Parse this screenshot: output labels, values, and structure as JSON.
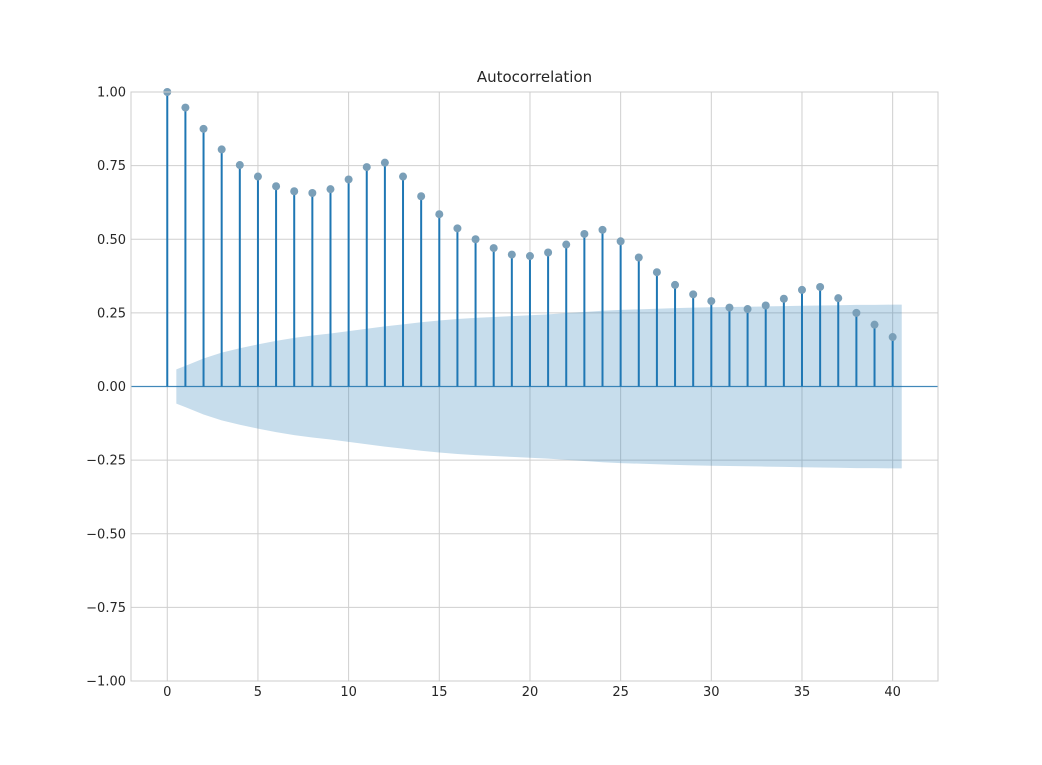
{
  "chart_data": {
    "type": "stem",
    "title": "Autocorrelation",
    "xlabel": "",
    "ylabel": "",
    "xlim": [
      -2,
      42.5
    ],
    "ylim": [
      -1.0,
      1.0
    ],
    "grid": true,
    "x_ticks": [
      0,
      5,
      10,
      15,
      20,
      25,
      30,
      35,
      40
    ],
    "y_ticks": [
      -1.0,
      -0.75,
      -0.5,
      -0.25,
      0.0,
      0.25,
      0.5,
      0.75,
      1.0
    ],
    "x_tick_labels": [
      "0",
      "5",
      "10",
      "15",
      "20",
      "25",
      "30",
      "35",
      "40"
    ],
    "y_tick_labels": [
      "−1.00",
      "−0.75",
      "−0.50",
      "−0.25",
      "0.00",
      "0.25",
      "0.50",
      "0.75",
      "1.00"
    ],
    "lags": [
      0,
      1,
      2,
      3,
      4,
      5,
      6,
      7,
      8,
      9,
      10,
      11,
      12,
      13,
      14,
      15,
      16,
      17,
      18,
      19,
      20,
      21,
      22,
      23,
      24,
      25,
      26,
      27,
      28,
      29,
      30,
      31,
      32,
      33,
      34,
      35,
      36,
      37,
      38,
      39,
      40
    ],
    "acf": [
      1.0,
      0.947,
      0.875,
      0.805,
      0.752,
      0.713,
      0.68,
      0.663,
      0.657,
      0.67,
      0.703,
      0.745,
      0.76,
      0.713,
      0.646,
      0.585,
      0.537,
      0.5,
      0.47,
      0.448,
      0.443,
      0.455,
      0.482,
      0.518,
      0.532,
      0.493,
      0.438,
      0.388,
      0.345,
      0.313,
      0.29,
      0.268,
      0.263,
      0.275,
      0.298,
      0.328,
      0.338,
      0.3,
      0.25,
      0.21,
      0.168
    ],
    "confidence_band": {
      "lags": [
        0.5,
        1,
        2,
        3,
        4,
        5,
        6,
        7,
        8,
        9,
        10,
        11,
        12,
        13,
        14,
        15,
        16,
        17,
        18,
        19,
        20,
        21,
        22,
        23,
        24,
        25,
        26,
        27,
        28,
        29,
        30,
        31,
        32,
        33,
        34,
        35,
        36,
        37,
        38,
        39,
        40,
        40.5
      ],
      "upper": [
        0.058,
        0.07,
        0.095,
        0.115,
        0.13,
        0.143,
        0.155,
        0.165,
        0.173,
        0.18,
        0.188,
        0.196,
        0.204,
        0.211,
        0.218,
        0.224,
        0.229,
        0.233,
        0.236,
        0.239,
        0.242,
        0.245,
        0.249,
        0.253,
        0.257,
        0.26,
        0.262,
        0.264,
        0.266,
        0.268,
        0.269,
        0.27,
        0.271,
        0.272,
        0.273,
        0.274,
        0.275,
        0.276,
        0.277,
        0.277,
        0.278,
        0.278
      ]
    }
  }
}
